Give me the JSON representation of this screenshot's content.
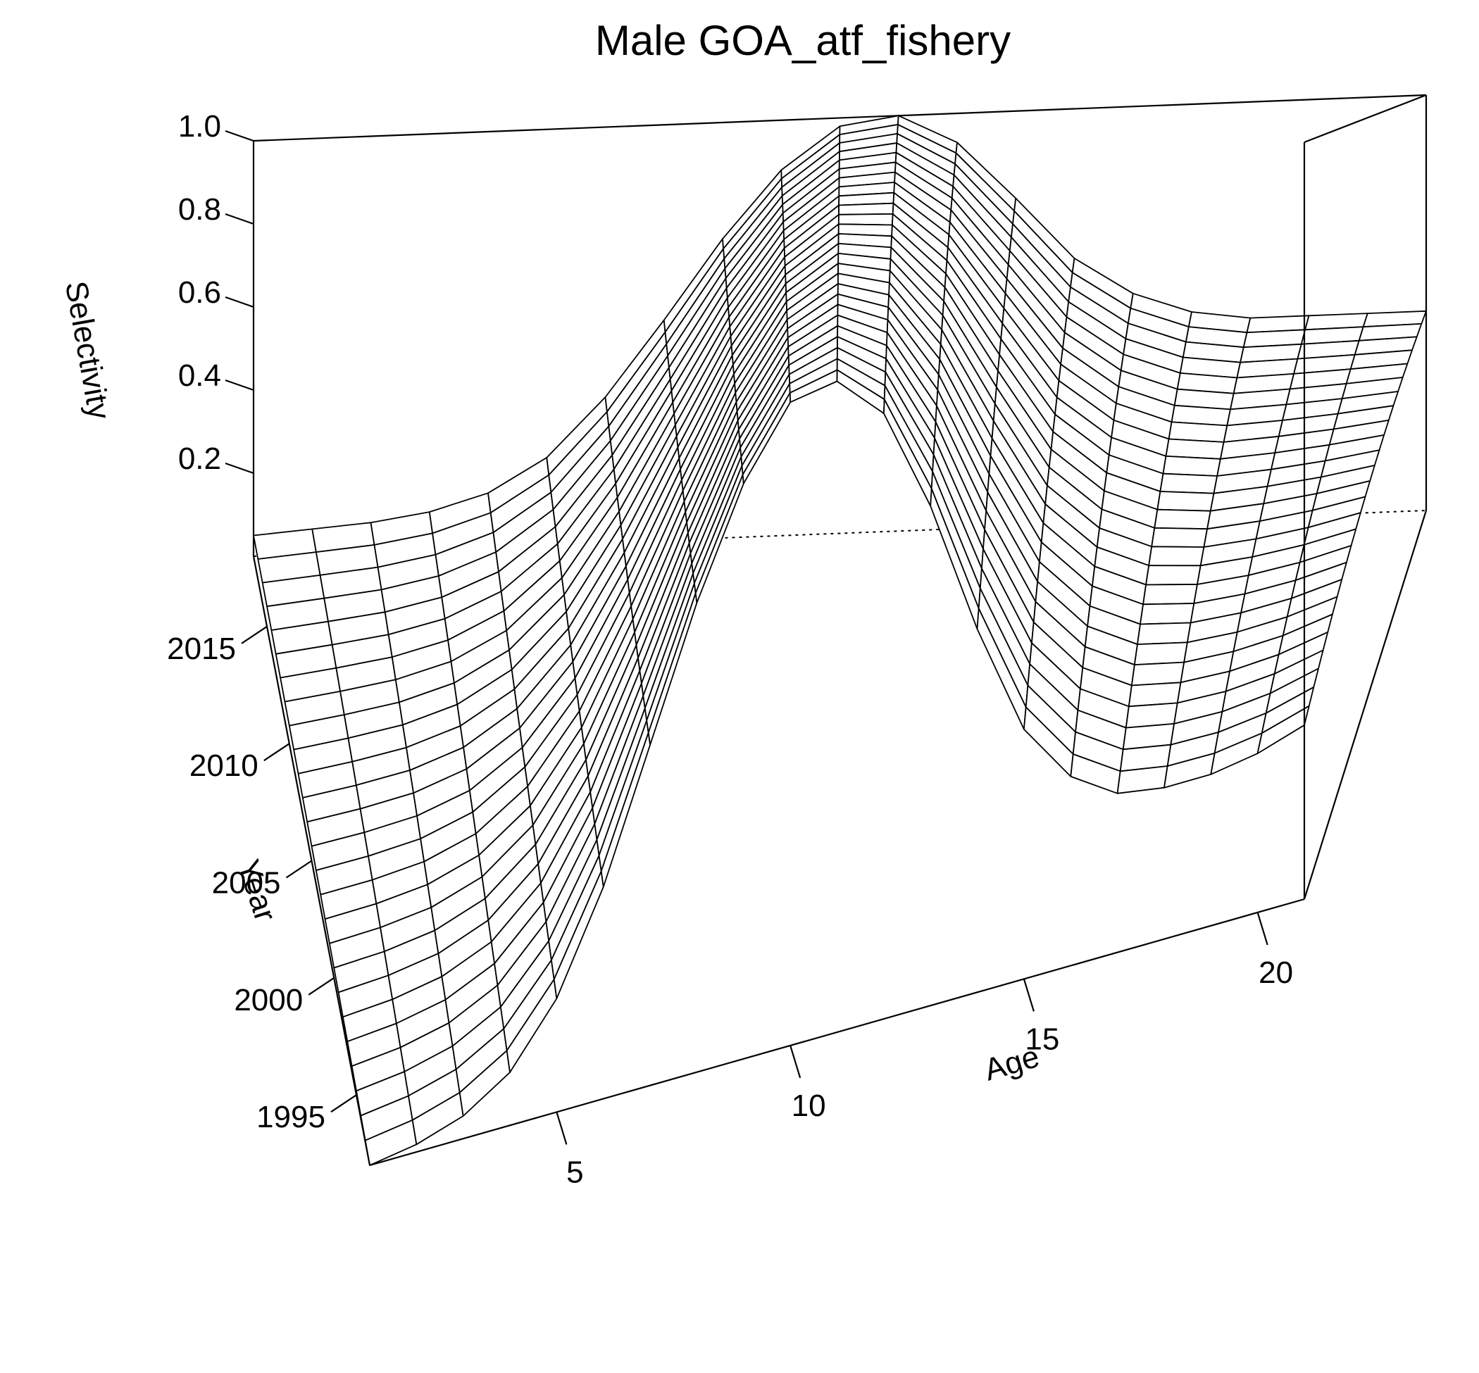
{
  "chart_data": {
    "type": "surface3d",
    "title": "Male GOA_atf_fishery",
    "xlabel": "Age",
    "ylabel": "Year",
    "zlabel": "Selectivity",
    "x_ticks": [
      "5",
      "10",
      "15",
      "20"
    ],
    "y_ticks": [
      "1995",
      "2000",
      "2005",
      "2010",
      "2015"
    ],
    "z_ticks": [
      "0.2",
      "0.4",
      "0.6",
      "0.8",
      "1.0"
    ],
    "xlim": [
      1,
      21
    ],
    "ylim": [
      1992,
      2018
    ],
    "zlim": [
      0,
      1
    ],
    "ages": [
      1,
      2,
      3,
      4,
      5,
      6,
      7,
      8,
      9,
      10,
      11,
      12,
      13,
      14,
      15,
      16,
      17,
      18,
      19,
      20,
      21
    ],
    "years": [
      1992,
      1993,
      1994,
      1995,
      1996,
      1997,
      1998,
      1999,
      2000,
      2001,
      2002,
      2003,
      2004,
      2005,
      2006,
      2007,
      2008,
      2009,
      2010,
      2011,
      2012,
      2013,
      2014,
      2015,
      2016,
      2017,
      2018
    ],
    "selectivity_by_year_start": [
      0.0,
      0.01,
      0.03,
      0.07,
      0.15,
      0.28,
      0.45,
      0.62,
      0.76,
      0.85,
      0.86,
      0.8,
      0.66,
      0.48,
      0.33,
      0.25,
      0.21,
      0.2,
      0.2,
      0.21,
      0.23
    ],
    "selectivity_by_year_end": [
      0.05,
      0.06,
      0.07,
      0.09,
      0.13,
      0.21,
      0.35,
      0.53,
      0.72,
      0.88,
      0.98,
      1.0,
      0.93,
      0.79,
      0.64,
      0.55,
      0.5,
      0.48,
      0.48,
      0.48,
      0.48
    ],
    "grid": false
  }
}
